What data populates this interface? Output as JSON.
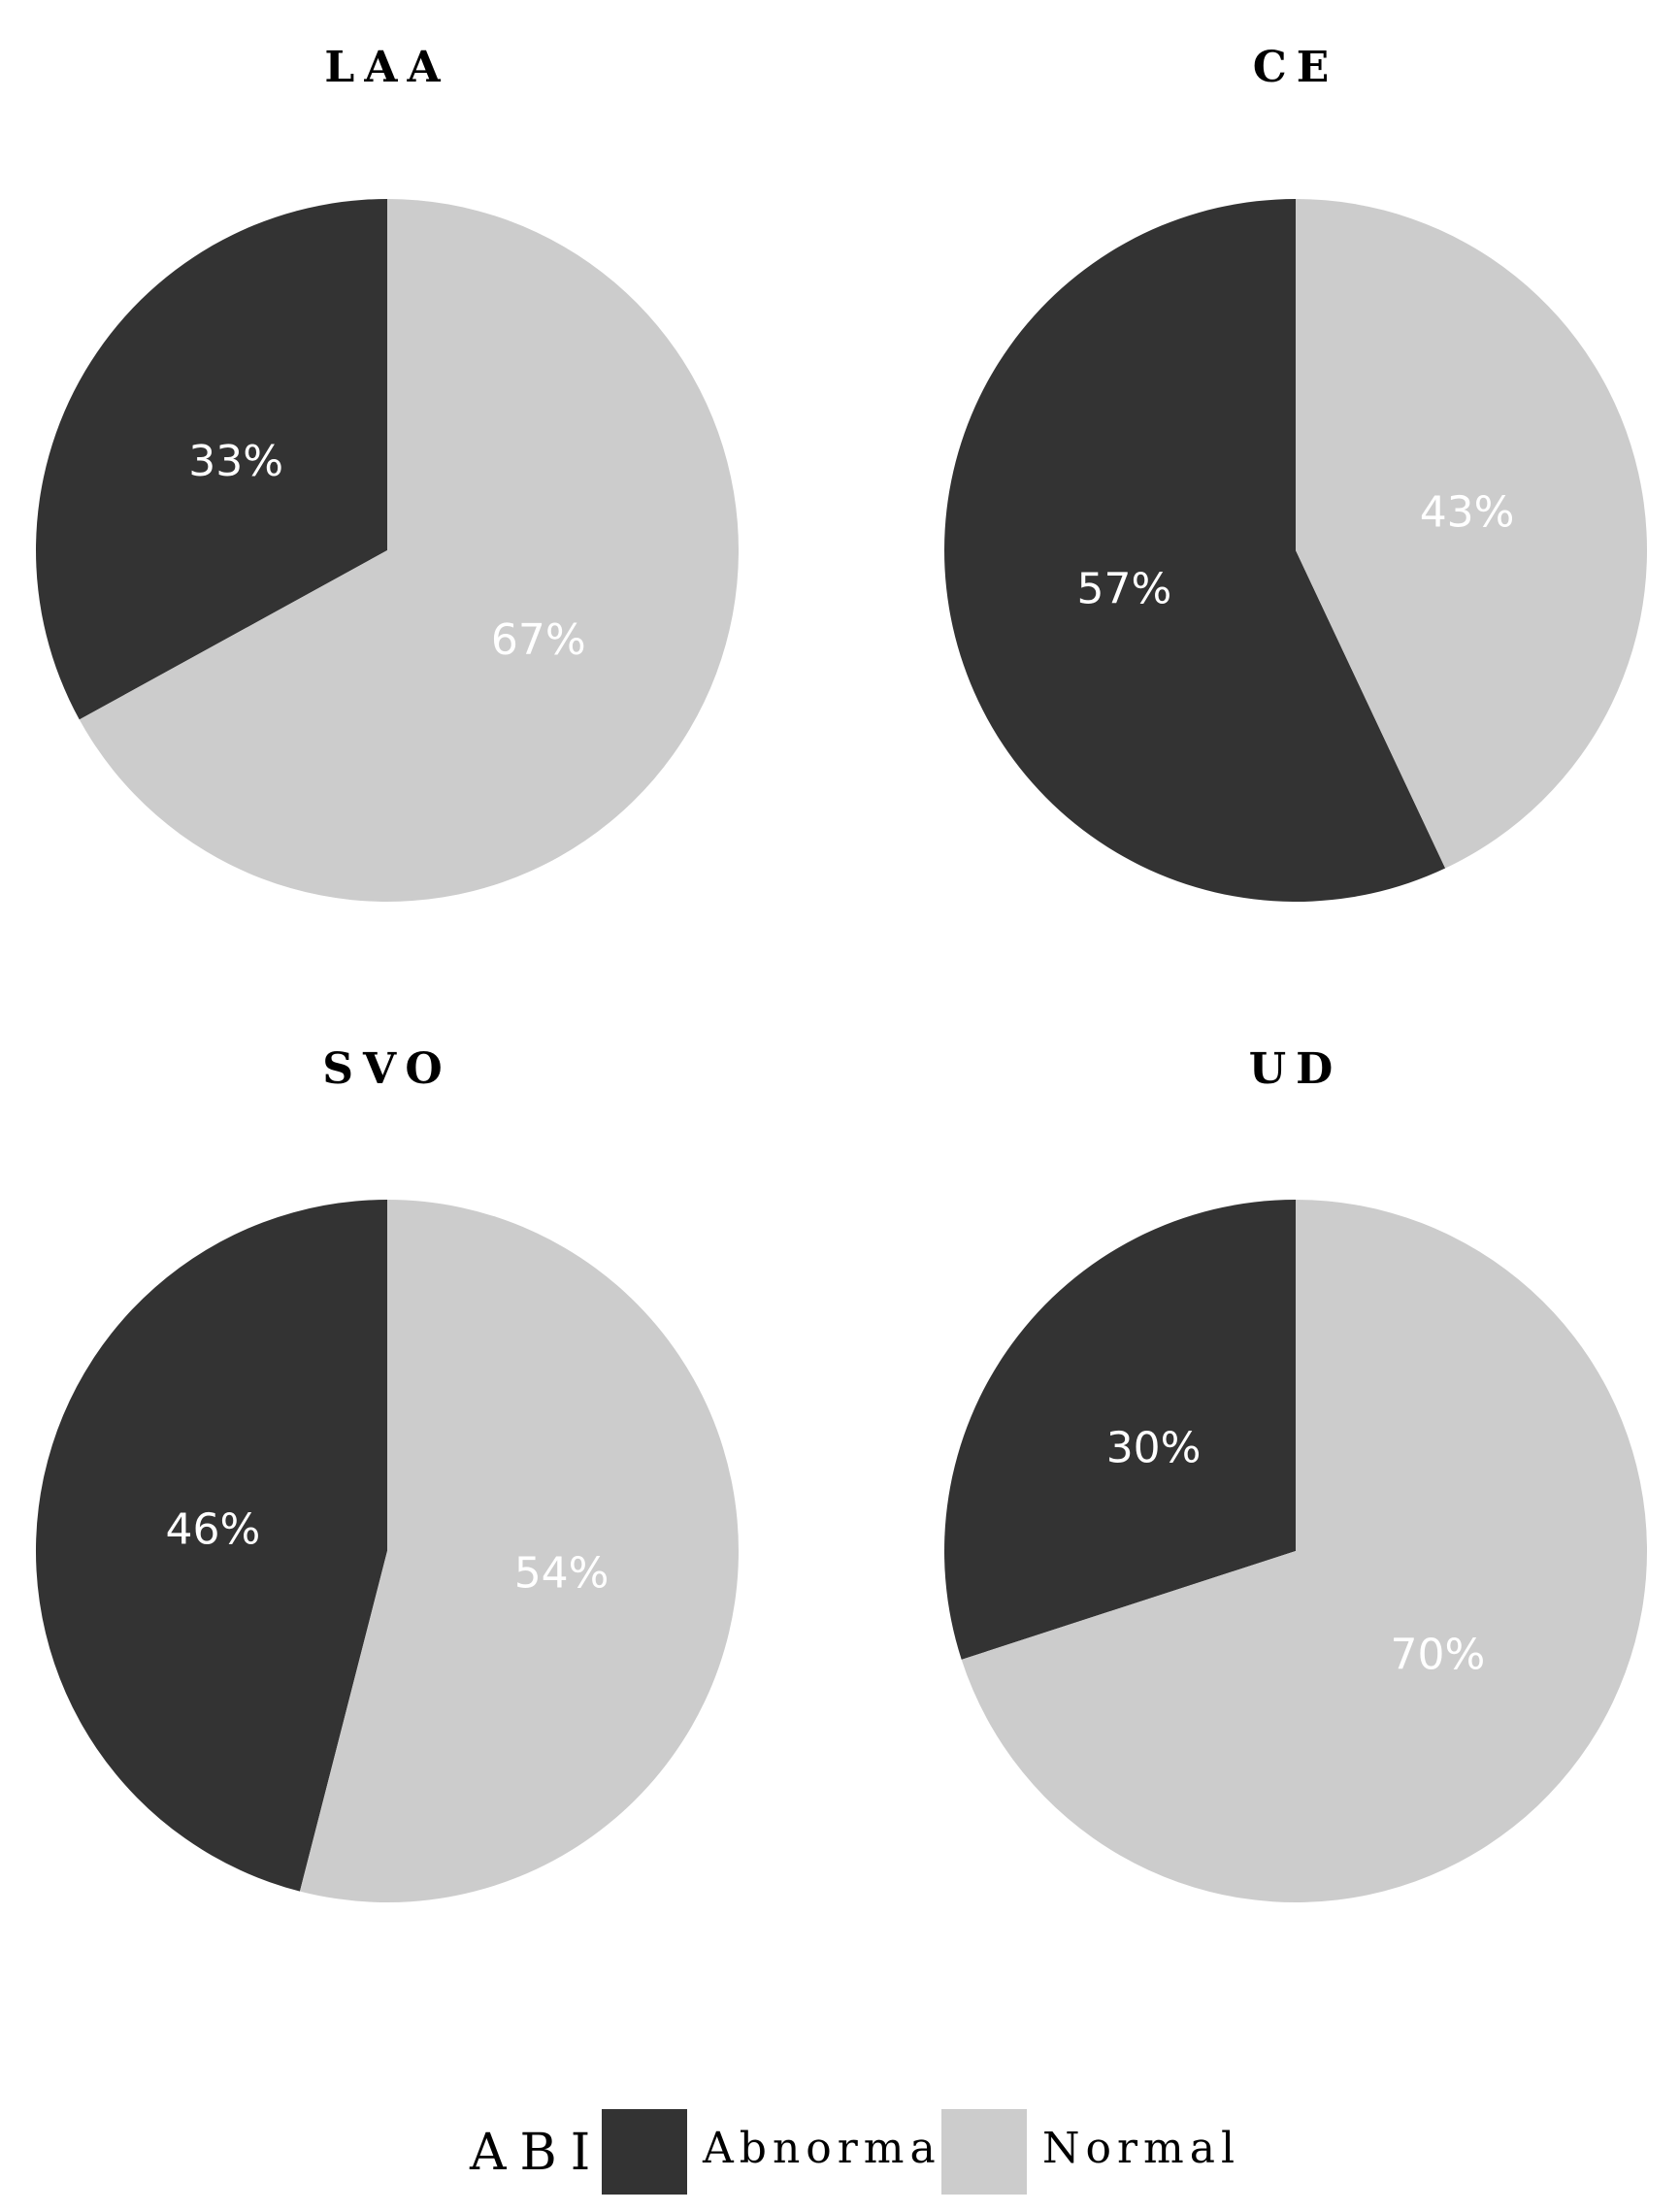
{
  "chart_data": [
    {
      "type": "pie",
      "title": "LAA",
      "categories": [
        "Abnormal",
        "Normal"
      ],
      "values": [
        33,
        67
      ],
      "labels": [
        "33%",
        "67%"
      ],
      "colors": [
        "#333333",
        "#cccccc"
      ],
      "start": "12 o'clock",
      "direction": "counterclockwise"
    },
    {
      "type": "pie",
      "title": "CE",
      "categories": [
        "Abnormal",
        "Normal"
      ],
      "values": [
        57,
        43
      ],
      "labels": [
        "57%",
        "43%"
      ],
      "colors": [
        "#333333",
        "#cccccc"
      ],
      "start": "12 o'clock",
      "direction": "counterclockwise"
    },
    {
      "type": "pie",
      "title": "SVO",
      "categories": [
        "Abnormal",
        "Normal"
      ],
      "values": [
        46,
        54
      ],
      "labels": [
        "46%",
        "54%"
      ],
      "colors": [
        "#333333",
        "#cccccc"
      ],
      "start": "12 o'clock",
      "direction": "counterclockwise"
    },
    {
      "type": "pie",
      "title": "UD",
      "categories": [
        "Abnormal",
        "Normal"
      ],
      "values": [
        30,
        70
      ],
      "labels": [
        "30%",
        "70%"
      ],
      "colors": [
        "#333333",
        "#cccccc"
      ],
      "start": "12 o'clock",
      "direction": "counterclockwise"
    }
  ],
  "legend": {
    "title": "ABI",
    "position": "bottom",
    "items": [
      {
        "label": "Abnormal",
        "color": "#333333"
      },
      {
        "label": "Normal",
        "color": "#cccccc"
      }
    ]
  }
}
